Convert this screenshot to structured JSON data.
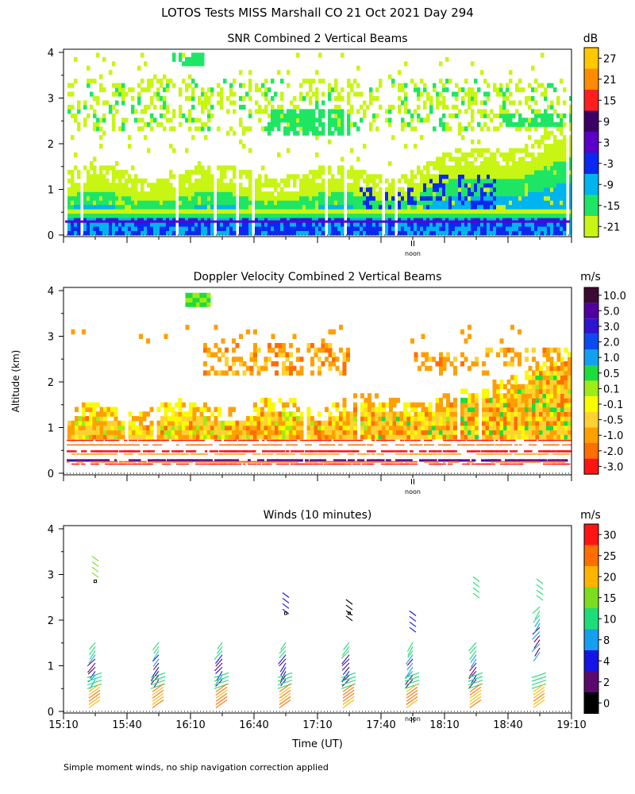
{
  "figure_title": "LOTOS Tests MISS Marshall CO  21 Oct 2021 Day 294",
  "footnote": "Simple moment winds, no ship navigation correction applied",
  "shared": {
    "ylabel": "Altitude (km)",
    "xlabel": "Time (UT)",
    "noon_label": "noon",
    "x_tick_labels": [
      "15:10",
      "15:40",
      "16:10",
      "16:40",
      "17:10",
      "17:40",
      "18:10",
      "18:40",
      "19:10"
    ]
  },
  "chart_data": [
    {
      "type": "heatmap",
      "id": "snr",
      "title": "SNR Combined 2 Vertical Beams",
      "unit": "dB",
      "ylim": [
        0,
        4
      ],
      "y_ticks": [
        "0",
        "1",
        "2",
        "3",
        "4"
      ],
      "xlim": [
        "15:10",
        "19:10"
      ],
      "colorbar_labels": [
        "27",
        "21",
        "15",
        "9",
        "3",
        "-3",
        "-9",
        "-15",
        "-21"
      ],
      "colorbar_colors": [
        "#ffc800",
        "#ff8c00",
        "#ff1e1e",
        "#3c0064",
        "#5a00c8",
        "#0a28f0",
        "#00b4f0",
        "#1ee664",
        "#c8f514"
      ]
    },
    {
      "type": "heatmap",
      "id": "doppler",
      "title": "Doppler Velocity Combined 2 Vertical Beams",
      "unit": "m/s",
      "ylim": [
        0,
        4
      ],
      "y_ticks": [
        "0",
        "1",
        "2",
        "3",
        "4"
      ],
      "xlim": [
        "15:10",
        "19:10"
      ],
      "colorbar_labels": [
        "10.0",
        "5.0",
        "3.0",
        "2.0",
        "1.0",
        "0.5",
        "0.1",
        "-0.1",
        "-0.5",
        "-1.0",
        "-2.0",
        "-3.0"
      ],
      "colorbar_colors": [
        "#3c0a32",
        "#5000a0",
        "#2d14d2",
        "#0a4bf0",
        "#14a0f0",
        "#1edc3c",
        "#a0eb14",
        "#fafa00",
        "#ffd232",
        "#ffa000",
        "#ff6e00",
        "#ff1414"
      ]
    },
    {
      "type": "scatter",
      "id": "winds",
      "title": "Winds (10 minutes)",
      "unit": "m/s",
      "ylim": [
        0,
        4
      ],
      "y_ticks": [
        "0",
        "1",
        "2",
        "3",
        "4"
      ],
      "xlim": [
        "15:10",
        "19:10"
      ],
      "colorbar_labels": [
        "30",
        "25",
        "20",
        "15",
        "10",
        "8",
        "4",
        "2",
        "0"
      ],
      "colorbar_colors": [
        "#ff1414",
        "#ff6e00",
        "#ffb400",
        "#7ddc1e",
        "#1edc78",
        "#14a0f0",
        "#1414e6",
        "#5a0a6e",
        "#000000"
      ],
      "profile_times": [
        "15:25",
        "15:55",
        "16:25",
        "16:55",
        "17:25",
        "17:55",
        "18:25",
        "18:55"
      ]
    }
  ]
}
